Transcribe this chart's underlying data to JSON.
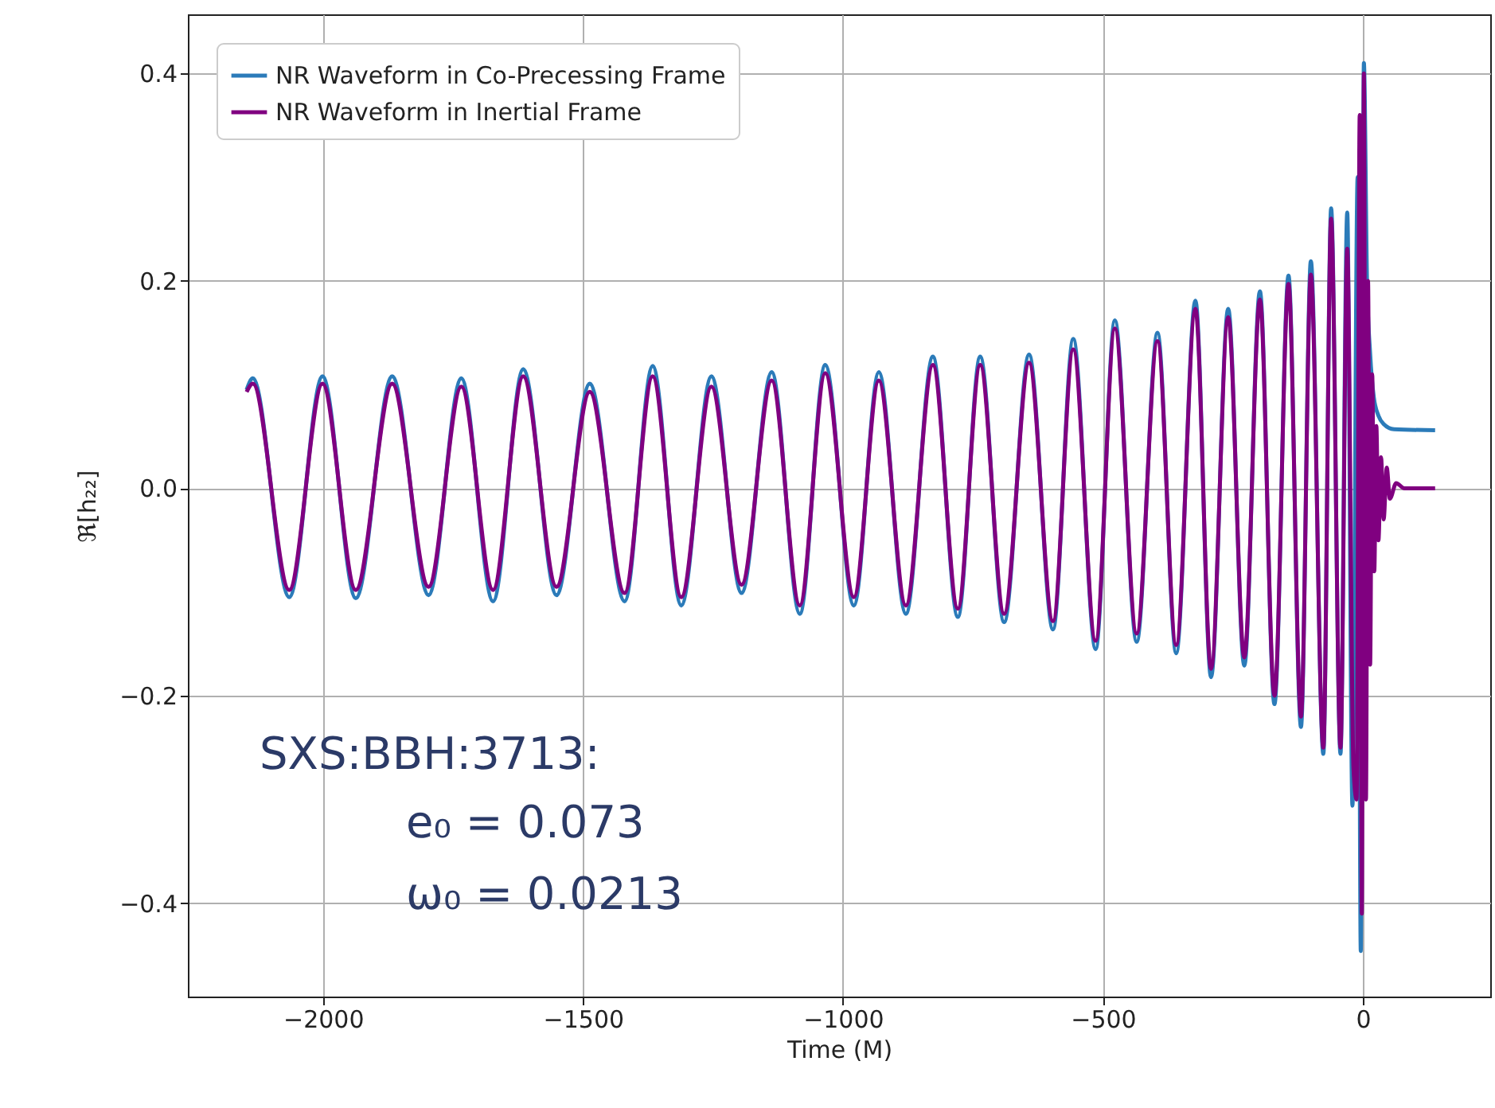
{
  "chart_data": {
    "type": "line",
    "xlabel": "Time (M)",
    "ylabel": "ℜ[h₂₂]",
    "xlim": [
      -2260,
      245
    ],
    "ylim": [
      -0.49,
      0.457
    ],
    "xticks": [
      -2000,
      -1500,
      -1000,
      -500,
      0
    ],
    "yticks": [
      -0.4,
      -0.2,
      {
        "value": 0,
        "label": "0.0"
      },
      0.2,
      0.4
    ],
    "grid": true,
    "legend": "top left",
    "line_style": "solid",
    "marker": "none",
    "annotations": [
      "SXS:BBH:3713:",
      "e₀ = 0.073",
      "ω₀ = 0.0213"
    ],
    "series": [
      {
        "name": "NR Waveform in Co-Precessing Frame",
        "color": "#2b7bb9",
        "x": [
          -2147,
          -2135,
          -2065,
          -2001,
          -1937,
          -1867,
          -1797,
          -1734,
          -1673,
          -1615,
          -1551,
          -1487,
          -1420,
          -1366,
          -1311,
          -1253,
          -1195,
          -1137,
          -1083,
          -1034,
          -979,
          -931,
          -879,
          -827,
          -779,
          -736,
          -690,
          -642,
          -596,
          -557,
          -514,
          -477,
          -435,
          -395,
          -359,
          -322,
          -292,
          -259,
          -228,
          -198,
          -170,
          -143,
          -119,
          -100,
          -76,
          -61,
          -43,
          -30,
          -20,
          -10,
          -4,
          2,
          8,
          14,
          21,
          30,
          40,
          60,
          139
        ],
        "values": [
          0.095,
          0.106,
          -0.105,
          0.108,
          -0.106,
          0.108,
          -0.103,
          0.106,
          -0.109,
          0.115,
          -0.103,
          0.101,
          -0.109,
          0.118,
          -0.113,
          0.108,
          -0.101,
          0.112,
          -0.121,
          0.119,
          -0.113,
          0.112,
          -0.121,
          0.127,
          -0.124,
          0.127,
          -0.129,
          0.129,
          -0.136,
          0.144,
          -0.155,
          0.162,
          -0.148,
          0.15,
          -0.159,
          0.181,
          -0.182,
          0.173,
          -0.171,
          0.19,
          -0.208,
          0.205,
          -0.23,
          0.219,
          -0.256,
          0.27,
          -0.256,
          0.266,
          -0.306,
          0.3,
          -0.446,
          0.41,
          0.2,
          0.13,
          0.088,
          0.07,
          0.062,
          0.057,
          0.056
        ]
      },
      {
        "name": "NR Waveform in Inertial Frame",
        "color": "#800080",
        "x": [
          -2147,
          -2135,
          -2065,
          -2001,
          -1937,
          -1867,
          -1797,
          -1734,
          -1673,
          -1615,
          -1551,
          -1487,
          -1420,
          -1366,
          -1311,
          -1253,
          -1195,
          -1137,
          -1083,
          -1034,
          -979,
          -931,
          -879,
          -827,
          -779,
          -736,
          -690,
          -642,
          -596,
          -557,
          -514,
          -477,
          -435,
          -395,
          -359,
          -322,
          -292,
          -259,
          -228,
          -198,
          -170,
          -143,
          -119,
          -100,
          -76,
          -61,
          -43,
          -30,
          -18,
          -12,
          -6,
          -2,
          2,
          6,
          10,
          14,
          18,
          22,
          26,
          30,
          35,
          40,
          46,
          52,
          64,
          80,
          139
        ],
        "values": [
          0.093,
          0.101,
          -0.098,
          0.101,
          -0.098,
          0.101,
          -0.095,
          0.098,
          -0.098,
          0.108,
          -0.095,
          0.093,
          -0.101,
          0.108,
          -0.105,
          0.098,
          -0.093,
          0.104,
          -0.113,
          0.111,
          -0.105,
          0.104,
          -0.113,
          0.119,
          -0.116,
          0.119,
          -0.121,
          0.121,
          -0.128,
          0.134,
          -0.147,
          0.154,
          -0.14,
          0.142,
          -0.151,
          0.173,
          -0.174,
          0.165,
          -0.163,
          0.182,
          -0.2,
          0.197,
          -0.22,
          0.206,
          -0.25,
          0.26,
          -0.25,
          0.231,
          -0.27,
          -0.3,
          0.36,
          -0.41,
          0.4,
          -0.3,
          0.2,
          -0.17,
          0.11,
          -0.08,
          0.06,
          -0.05,
          0.03,
          -0.03,
          0.02,
          -0.01,
          0.005,
          0.0,
          0.0
        ]
      }
    ]
  }
}
